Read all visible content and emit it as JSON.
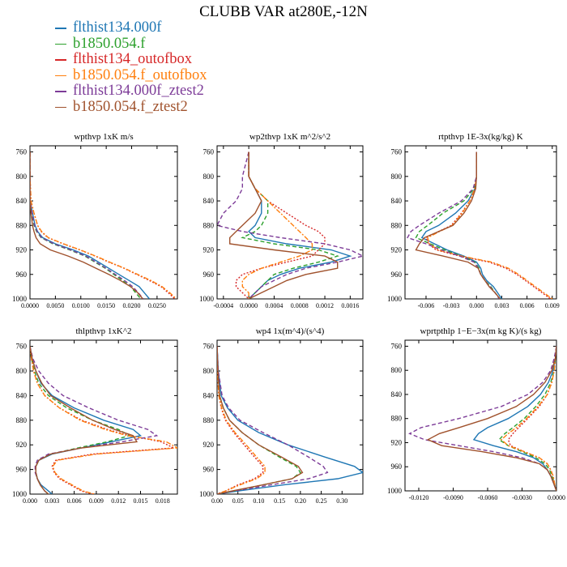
{
  "title": "CLUBB VAR at280E,-12N",
  "legend": [
    {
      "label": "flthist134.000f",
      "color": "#1f77b4",
      "dash": "solid"
    },
    {
      "label": "b1850.054.f",
      "color": "#2ca02c",
      "dash": "dashed"
    },
    {
      "label": "flthist134_outofbox",
      "color": "#d62728",
      "dash": "dotted"
    },
    {
      "label": "b1850.054.f_outofbox",
      "color": "#ff7f0e",
      "dash": "dashdot"
    },
    {
      "label": "flthist134.000f_ztest2",
      "color": "#7d3c98",
      "dash": "dashed"
    },
    {
      "label": "b1850.054.f_ztest2",
      "color": "#a0522d",
      "dash": "solid"
    }
  ],
  "chart_data": [
    {
      "type": "line",
      "title": "wpthvp  1xK m/s",
      "ylim": [
        1000,
        750
      ],
      "yticks": [
        760,
        800,
        840,
        880,
        920,
        960,
        1000
      ],
      "xlim": [
        0,
        0.029
      ],
      "xticks": [
        "0.0000",
        "0.0050",
        "0.0100",
        "0.0150",
        "0.0200",
        "0.0250"
      ],
      "xtick_values": [
        0,
        0.005,
        0.01,
        0.015,
        0.02,
        0.025
      ],
      "y": [
        760,
        800,
        840,
        860,
        880,
        890,
        900,
        910,
        920,
        930,
        940,
        950,
        960,
        970,
        980,
        990,
        1000
      ],
      "series": [
        {
          "values": [
            0,
            0,
            0,
            0.0005,
            0.001,
            0.0015,
            0.0025,
            0.005,
            0.0085,
            0.0115,
            0.0135,
            0.0155,
            0.0175,
            0.0195,
            0.0215,
            0.0225,
            0.0235
          ]
        },
        {
          "values": [
            0,
            0,
            0,
            0.0003,
            0.0008,
            0.0013,
            0.0022,
            0.0045,
            0.0078,
            0.0108,
            0.0128,
            0.0148,
            0.0165,
            0.0182,
            0.0198,
            0.0208,
            0.0218
          ]
        },
        {
          "values": [
            0,
            0,
            0.0002,
            0.0008,
            0.0015,
            0.0022,
            0.0035,
            0.0065,
            0.0098,
            0.0128,
            0.0155,
            0.0185,
            0.021,
            0.0235,
            0.0258,
            0.0272,
            0.0285
          ]
        },
        {
          "values": [
            0,
            0,
            0.0002,
            0.0008,
            0.0015,
            0.0023,
            0.0036,
            0.0066,
            0.0099,
            0.0129,
            0.0157,
            0.0186,
            0.0212,
            0.0238,
            0.026,
            0.0275,
            0.0288
          ]
        },
        {
          "values": [
            0,
            0,
            0,
            0.0004,
            0.0009,
            0.0014,
            0.0023,
            0.0047,
            0.008,
            0.011,
            0.013,
            0.015,
            0.0168,
            0.0186,
            0.0202,
            0.0213,
            0.0223
          ]
        },
        {
          "values": [
            0,
            0,
            0,
            0.0002,
            0.0005,
            0.0008,
            0.0012,
            0.002,
            0.004,
            0.0075,
            0.0105,
            0.013,
            0.0155,
            0.0178,
            0.0198,
            0.0212,
            0.0222
          ]
        }
      ]
    },
    {
      "type": "line",
      "title": "wp2thvp  1xK m^2/s^2",
      "ylim": [
        1000,
        750
      ],
      "yticks": [
        760,
        800,
        840,
        880,
        920,
        960,
        1000
      ],
      "xlim": [
        -0.0005,
        0.0018
      ],
      "xticks": [
        "-0.0004",
        "0.0000",
        "0.0004",
        "0.0008",
        "0.0012",
        "0.0016"
      ],
      "xtick_values": [
        -0.0004,
        0,
        0.0004,
        0.0008,
        0.0012,
        0.0016
      ],
      "y": [
        760,
        800,
        820,
        840,
        860,
        880,
        890,
        900,
        910,
        920,
        930,
        940,
        950,
        960,
        970,
        980,
        990,
        1000
      ],
      "series": [
        {
          "values": [
            0,
            0,
            0.0001,
            0.0002,
            0.0002,
            0.0001,
            0,
            0.0001,
            0.0006,
            0.0013,
            0.0016,
            0.0013,
            0.0008,
            0.0005,
            0.0003,
            0.0002,
            0.0001,
            0
          ]
        },
        {
          "values": [
            0,
            0,
            0.0001,
            0.0003,
            0.0003,
            0.0002,
            0.0001,
            -0.0001,
            0.0004,
            0.0011,
            0.0014,
            0.0011,
            0.0007,
            0.0004,
            0.0003,
            0.0002,
            0.0001,
            0
          ]
        },
        {
          "values": [
            0,
            0,
            0.0001,
            0.0003,
            0.0006,
            0.0009,
            0.0011,
            0.0012,
            0.0012,
            0.0011,
            0.001,
            0.0006,
            0.0002,
            -0.0001,
            -0.0002,
            -0.0002,
            -0.0001,
            0
          ]
        },
        {
          "values": [
            0,
            0,
            0.0001,
            0.0003,
            0.0005,
            0.0007,
            0.0008,
            0.0009,
            0.001,
            0.001,
            0.0008,
            0.0005,
            0.0002,
            0,
            -0.0001,
            -0.0001,
            0,
            0
          ]
        },
        {
          "values": [
            0,
            -0.0001,
            -0.0001,
            -0.0002,
            -0.0004,
            -0.0005,
            -0.0001,
            0.0005,
            0.0012,
            0.0016,
            0.0018,
            0.0014,
            0.0009,
            0.0006,
            0.0004,
            0.0002,
            0.0001,
            0
          ]
        },
        {
          "values": [
            0,
            0,
            0.0001,
            0.0002,
            0.0001,
            -0.0001,
            -0.0002,
            -0.0003,
            -0.0003,
            0.0004,
            0.0012,
            0.0014,
            0.0014,
            0.0009,
            0.0006,
            0.0004,
            0.0002,
            0
          ]
        }
      ]
    },
    {
      "type": "line",
      "title": "rtpthvp  1E-3x(kg/kg) K",
      "ylim": [
        1000,
        750
      ],
      "yticks": [
        760,
        800,
        840,
        880,
        920,
        960,
        1000
      ],
      "xlim": [
        -0.0085,
        0.0095
      ],
      "xticks": [
        "-0.006",
        "-0.003",
        "0.000",
        "0.003",
        "0.006",
        "0.009"
      ],
      "xtick_values": [
        -0.006,
        -0.003,
        0,
        0.003,
        0.006,
        0.009
      ],
      "y": [
        760,
        800,
        820,
        840,
        860,
        880,
        890,
        900,
        910,
        920,
        930,
        940,
        950,
        960,
        970,
        980,
        990,
        1000
      ],
      "series": [
        {
          "values": [
            0,
            0,
            -0.0002,
            -0.001,
            -0.0025,
            -0.0045,
            -0.006,
            -0.0065,
            -0.005,
            -0.0035,
            -0.0015,
            0,
            0.0005,
            0.0007,
            0.0012,
            0.002,
            0.0025,
            0.003
          ]
        },
        {
          "values": [
            0,
            0,
            -0.0003,
            -0.0015,
            -0.004,
            -0.0058,
            -0.0068,
            -0.0072,
            -0.0055,
            -0.0038,
            -0.0018,
            -0.0002,
            0.0003,
            0.0005,
            0.001,
            0.0017,
            0.0022,
            0.0028
          ]
        },
        {
          "values": [
            0,
            0,
            -0.0002,
            -0.0008,
            -0.0018,
            -0.003,
            -0.0045,
            -0.006,
            -0.0057,
            -0.0048,
            -0.002,
            0.0015,
            0.0035,
            0.0048,
            0.0058,
            0.0068,
            0.0078,
            0.0088
          ]
        },
        {
          "values": [
            0,
            0,
            -0.0002,
            -0.0008,
            -0.0017,
            -0.0029,
            -0.0044,
            -0.0058,
            -0.0056,
            -0.0046,
            -0.0018,
            0.0018,
            0.0038,
            0.005,
            0.006,
            0.007,
            0.008,
            0.009
          ]
        },
        {
          "values": [
            0,
            0,
            -0.0004,
            -0.0018,
            -0.0045,
            -0.0068,
            -0.0078,
            -0.0082,
            -0.006,
            -0.0042,
            -0.002,
            -0.0003,
            0.0002,
            0.0005,
            0.001,
            0.0016,
            0.0022,
            0.0027
          ]
        },
        {
          "values": [
            0,
            0,
            -0.0001,
            -0.0006,
            -0.0015,
            -0.0028,
            -0.0045,
            -0.0062,
            -0.0068,
            -0.0072,
            -0.004,
            -0.001,
            0.0002,
            0.0005,
            0.001,
            0.0015,
            0.0022,
            0.0028
          ]
        }
      ]
    },
    {
      "type": "line",
      "title": "thlpthvp  1xK^2",
      "ylim": [
        1000,
        750
      ],
      "yticks": [
        760,
        800,
        840,
        880,
        920,
        960,
        1000
      ],
      "xlim": [
        0,
        0.02
      ],
      "xticks": [
        "0.000",
        "0.003",
        "0.006",
        "0.009",
        "0.012",
        "0.015",
        "0.018"
      ],
      "xtick_values": [
        0,
        0.003,
        0.006,
        0.009,
        0.012,
        0.015,
        0.018
      ],
      "y": [
        760,
        780,
        800,
        820,
        840,
        860,
        880,
        895,
        905,
        915,
        925,
        935,
        945,
        955,
        965,
        975,
        985,
        995,
        1000
      ],
      "series": [
        {
          "values": [
            0,
            0.0003,
            0.0008,
            0.0015,
            0.003,
            0.006,
            0.01,
            0.014,
            0.015,
            0.011,
            0.007,
            0.003,
            0.0012,
            0.0008,
            0.0008,
            0.001,
            0.0015,
            0.0025,
            0.003
          ]
        },
        {
          "values": [
            0,
            0.0002,
            0.0006,
            0.0012,
            0.0025,
            0.005,
            0.0085,
            0.012,
            0.0135,
            0.0105,
            0.0065,
            0.0028,
            0.0012,
            0.0008,
            0.0008,
            0.001,
            0.0014,
            0.002,
            0.0025
          ]
        },
        {
          "values": [
            0,
            0.0002,
            0.0005,
            0.001,
            0.002,
            0.004,
            0.007,
            0.0105,
            0.0135,
            0.0178,
            0.0195,
            0.0085,
            0.0035,
            0.003,
            0.0033,
            0.004,
            0.0055,
            0.007,
            0.0085
          ]
        },
        {
          "values": [
            0,
            0.0002,
            0.0005,
            0.001,
            0.002,
            0.004,
            0.0068,
            0.0102,
            0.0132,
            0.0185,
            0.02,
            0.009,
            0.0037,
            0.0031,
            0.0034,
            0.0042,
            0.0057,
            0.0072,
            0.0088
          ]
        },
        {
          "values": [
            0,
            0.0004,
            0.0012,
            0.0025,
            0.0045,
            0.008,
            0.012,
            0.016,
            0.0172,
            0.0125,
            0.007,
            0.0025,
            0.001,
            0.0007,
            0.0007,
            0.001,
            0.0014,
            0.002,
            0.0025
          ]
        },
        {
          "values": [
            0,
            0.0003,
            0.0008,
            0.0016,
            0.0028,
            0.0055,
            0.0085,
            0.0115,
            0.014,
            0.0145,
            0.007,
            0.0028,
            0.0012,
            0.0008,
            0.0008,
            0.001,
            0.0014,
            0.002,
            0.0025
          ]
        }
      ]
    },
    {
      "type": "line",
      "title": "wp4  1x(m^4)/(s^4)",
      "ylim": [
        1000,
        750
      ],
      "yticks": [
        760,
        800,
        840,
        880,
        920,
        960,
        1000
      ],
      "xlim": [
        0,
        0.35
      ],
      "xticks": [
        "0.00",
        "0.05",
        "0.10",
        "0.15",
        "0.20",
        "0.25",
        "0.30"
      ],
      "xtick_values": [
        0,
        0.05,
        0.1,
        0.15,
        0.2,
        0.25,
        0.3
      ],
      "y": [
        760,
        800,
        840,
        860,
        880,
        900,
        920,
        940,
        955,
        965,
        975,
        985,
        995,
        1000
      ],
      "series": [
        {
          "values": [
            0,
            0.003,
            0.01,
            0.025,
            0.05,
            0.1,
            0.17,
            0.26,
            0.33,
            0.35,
            0.29,
            0.16,
            0.05,
            0
          ]
        },
        {
          "values": [
            0,
            0.002,
            0.006,
            0.015,
            0.03,
            0.06,
            0.1,
            0.15,
            0.19,
            0.2,
            0.18,
            0.11,
            0.04,
            0
          ]
        },
        {
          "values": [
            0,
            0.001,
            0.004,
            0.01,
            0.02,
            0.04,
            0.065,
            0.09,
            0.11,
            0.11,
            0.09,
            0.05,
            0.02,
            0
          ]
        },
        {
          "values": [
            0,
            0.001,
            0.004,
            0.011,
            0.022,
            0.043,
            0.07,
            0.095,
            0.115,
            0.115,
            0.095,
            0.055,
            0.02,
            0
          ]
        },
        {
          "values": [
            0,
            0.003,
            0.012,
            0.028,
            0.055,
            0.11,
            0.17,
            0.22,
            0.255,
            0.265,
            0.22,
            0.13,
            0.04,
            0
          ]
        },
        {
          "values": [
            0,
            0.002,
            0.006,
            0.015,
            0.03,
            0.06,
            0.1,
            0.155,
            0.195,
            0.205,
            0.18,
            0.11,
            0.035,
            0
          ]
        }
      ]
    },
    {
      "type": "line",
      "title": "wprtpthlp  1−E−3x(m kg K)/(s kg)",
      "ylim": [
        1000,
        750
      ],
      "yticks": [
        760,
        800,
        840,
        880,
        920,
        960,
        1000
      ],
      "xlim": [
        -0.0132,
        0
      ],
      "xticks": [
        "-0.0120",
        "-0.0090",
        "-0.0060",
        "-0.0030",
        "0.0000"
      ],
      "xtick_values": [
        -0.012,
        -0.009,
        -0.006,
        -0.003,
        0
      ],
      "y": [
        760,
        780,
        800,
        820,
        840,
        860,
        880,
        895,
        905,
        915,
        925,
        935,
        945,
        955,
        965,
        975,
        985,
        995,
        1000
      ],
      "series": [
        {
          "values": [
            0,
            -0.0001,
            -0.0003,
            -0.0007,
            -0.0014,
            -0.0025,
            -0.0042,
            -0.006,
            -0.0068,
            -0.0072,
            -0.0055,
            -0.0035,
            -0.002,
            -0.0012,
            -0.0008,
            -0.0005,
            -0.0003,
            -0.0001,
            0
          ]
        },
        {
          "values": [
            0,
            -0.0001,
            -0.0002,
            -0.0005,
            -0.001,
            -0.0018,
            -0.0028,
            -0.0038,
            -0.0045,
            -0.005,
            -0.0042,
            -0.003,
            -0.0018,
            -0.001,
            -0.0006,
            -0.0004,
            -0.0002,
            -0.0001,
            0
          ]
        },
        {
          "values": [
            0,
            -0.0001,
            -0.0002,
            -0.0004,
            -0.0008,
            -0.0015,
            -0.0025,
            -0.0033,
            -0.0038,
            -0.0042,
            -0.004,
            -0.0028,
            -0.0015,
            -0.0008,
            -0.0005,
            -0.0003,
            -0.0002,
            -0.0001,
            0
          ]
        },
        {
          "values": [
            0,
            -0.0001,
            -0.0002,
            -0.0004,
            -0.0008,
            -0.0016,
            -0.0026,
            -0.0035,
            -0.0042,
            -0.0048,
            -0.0042,
            -0.0028,
            -0.0015,
            -0.0008,
            -0.0005,
            -0.0003,
            -0.0002,
            -0.0001,
            0
          ]
        },
        {
          "values": [
            0,
            -0.0002,
            -0.0005,
            -0.0012,
            -0.0025,
            -0.0048,
            -0.0085,
            -0.0118,
            -0.0128,
            -0.0115,
            -0.0085,
            -0.0055,
            -0.003,
            -0.0015,
            -0.0008,
            -0.0005,
            -0.0003,
            -0.0001,
            0
          ]
        },
        {
          "values": [
            0,
            -0.0001,
            -0.0004,
            -0.001,
            -0.002,
            -0.0035,
            -0.006,
            -0.0085,
            -0.0102,
            -0.0112,
            -0.01,
            -0.0065,
            -0.0035,
            -0.0015,
            -0.0008,
            -0.0005,
            -0.0003,
            -0.0001,
            0
          ]
        }
      ]
    }
  ]
}
